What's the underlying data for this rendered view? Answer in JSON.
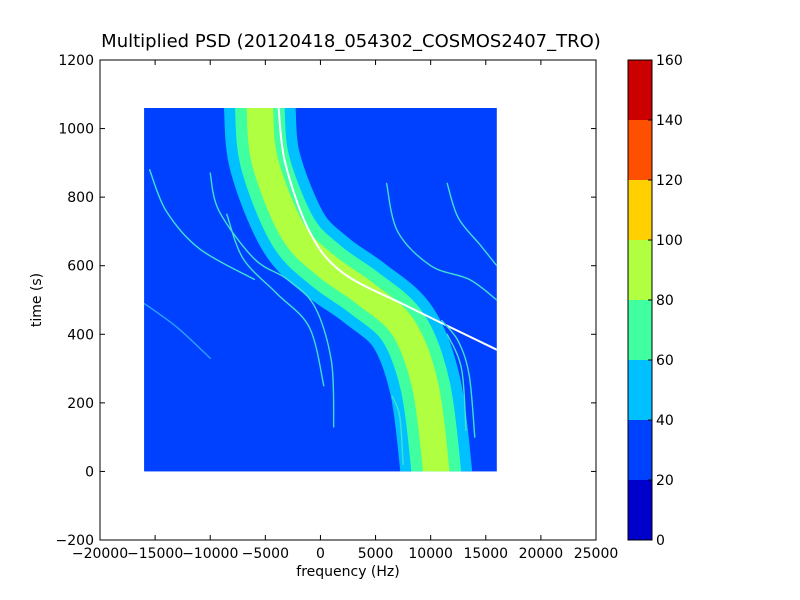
{
  "chart_data": {
    "type": "heatmap",
    "title": "Multiplied PSD (20120418_054302_COSMOS2407_TRO)",
    "xlabel": "frequency (Hz)",
    "ylabel": "time (s)",
    "xlim": [
      -20000,
      25000
    ],
    "ylim": [
      -200,
      1200
    ],
    "x_ticks": [
      -20000,
      -15000,
      -10000,
      -5000,
      0,
      5000,
      10000,
      15000,
      20000,
      25000
    ],
    "x_tick_labels": [
      "−20000",
      "−15000",
      "−10000",
      "−5000",
      "0",
      "5000",
      "10000",
      "15000",
      "20000",
      "25000"
    ],
    "y_ticks": [
      -200,
      0,
      200,
      400,
      600,
      800,
      1000,
      1200
    ],
    "y_tick_labels": [
      "−200",
      "0",
      "200",
      "400",
      "600",
      "800",
      "1000",
      "1200"
    ],
    "data_extent": {
      "x": [
        -16000,
        16000
      ],
      "y": [
        0,
        1060
      ]
    },
    "background_level": 30,
    "colorbar": {
      "levels": [
        0,
        20,
        40,
        60,
        80,
        100,
        120,
        140,
        160
      ],
      "tick_labels": [
        "0",
        "20",
        "40",
        "60",
        "80",
        "100",
        "120",
        "140",
        "160"
      ],
      "colors": [
        "#0000cc",
        "#0040ff",
        "#00c0ff",
        "#40ffa0",
        "#b0ff40",
        "#ffd000",
        "#ff5000",
        "#cc0000"
      ]
    },
    "traces": [
      {
        "name": "main-band",
        "center": [
          [
            -5500,
            1060
          ],
          [
            -5000,
            900
          ],
          [
            -2500,
            700
          ],
          [
            500,
            600
          ],
          [
            4000,
            520
          ],
          [
            7500,
            420
          ],
          [
            9500,
            250
          ],
          [
            10500,
            0
          ]
        ],
        "outer_width": 6500,
        "outer_level": 50,
        "mid_width": 4500,
        "mid_level": 70,
        "core_width": 2400,
        "core_level": 85
      },
      {
        "name": "white-line",
        "points": [
          [
            -3800,
            1060
          ],
          [
            -3200,
            900
          ],
          [
            -1000,
            700
          ],
          [
            2000,
            580
          ],
          [
            8000,
            480
          ],
          [
            16000,
            355
          ]
        ],
        "color": "#ffffff"
      },
      {
        "name": "faint-1",
        "points": [
          [
            -15500,
            880
          ],
          [
            -14000,
            760
          ],
          [
            -11000,
            650
          ],
          [
            -6000,
            560
          ]
        ],
        "color": "#40e0d0"
      },
      {
        "name": "faint-2",
        "points": [
          [
            -10000,
            870
          ],
          [
            -9200,
            760
          ],
          [
            -6000,
            620
          ],
          [
            -3000,
            560
          ],
          [
            -500,
            480
          ],
          [
            1000,
            320
          ],
          [
            1200,
            130
          ]
        ],
        "color": "#40e0d0"
      },
      {
        "name": "faint-3",
        "points": [
          [
            -8500,
            750
          ],
          [
            -7000,
            620
          ],
          [
            -4000,
            520
          ],
          [
            -1000,
            420
          ],
          [
            300,
            250
          ]
        ],
        "color": "#40e0d0"
      },
      {
        "name": "faint-4",
        "points": [
          [
            -16000,
            490
          ],
          [
            -13000,
            420
          ],
          [
            -10000,
            330
          ]
        ],
        "color": "#2aa0ff"
      },
      {
        "name": "faint-5",
        "points": [
          [
            6000,
            840
          ],
          [
            7000,
            700
          ],
          [
            10000,
            600
          ],
          [
            13500,
            560
          ],
          [
            16000,
            500
          ]
        ],
        "color": "#40e0d0"
      },
      {
        "name": "faint-6",
        "points": [
          [
            11500,
            840
          ],
          [
            12500,
            740
          ],
          [
            14500,
            660
          ],
          [
            16000,
            600
          ]
        ],
        "color": "#40e0d0"
      },
      {
        "name": "faint-7",
        "points": [
          [
            11000,
            440
          ],
          [
            12500,
            380
          ],
          [
            13500,
            280
          ],
          [
            14000,
            100
          ]
        ],
        "color": "#40e0d0"
      },
      {
        "name": "faint-8",
        "points": [
          [
            11500,
            400
          ],
          [
            12800,
            300
          ],
          [
            13200,
            120
          ]
        ],
        "color": "#40e0d0"
      },
      {
        "name": "faint-9",
        "points": [
          [
            6500,
            220
          ],
          [
            7200,
            160
          ],
          [
            7500,
            20
          ]
        ],
        "color": "#40e0d0"
      }
    ]
  }
}
